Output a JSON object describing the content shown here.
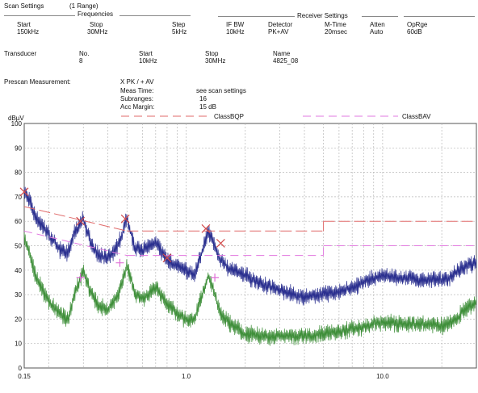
{
  "header": {
    "scan_settings_label": "Scan Settings",
    "range_count": "(1  Range)",
    "frequencies_label": "Frequencies",
    "receiver_settings_label": "Receiver Settings",
    "cols": {
      "start": {
        "label": "Start",
        "value": "150kHz"
      },
      "stop": {
        "label": "Stop",
        "value": "30MHz"
      },
      "step": {
        "label": "Step",
        "value": "5kHz"
      },
      "if_bw": {
        "label": "IF BW",
        "value": "10kHz"
      },
      "detector": {
        "label": "Detector",
        "value": "PK+AV"
      },
      "m_time": {
        "label": "M-Time",
        "value": "20msec"
      },
      "atten": {
        "label": "Atten",
        "value": "Auto"
      },
      "oprge": {
        "label": "OpRge",
        "value": "60dB"
      }
    }
  },
  "transducer": {
    "label": "Transducer",
    "no": {
      "label": "No.",
      "value": "8"
    },
    "start": {
      "label": "Start",
      "value": "10kHz"
    },
    "stop": {
      "label": "Stop",
      "value": "30MHz"
    },
    "name": {
      "label": "Name",
      "value": "4825_08"
    }
  },
  "prescan": {
    "label": "Prescan Measurement:",
    "detector": "X PK / + AV",
    "meas_time": {
      "label": "Meas Time:",
      "value": "see scan settings"
    },
    "subranges": {
      "label": "Subranges:",
      "value": "16"
    },
    "acc_margin": {
      "label": "Acc Margin:",
      "value": "15 dB"
    }
  },
  "chart_data": {
    "type": "line",
    "ylabel": "dBµV",
    "x_scale": "log",
    "xlim": [
      0.15,
      30
    ],
    "ylim": [
      0,
      100
    ],
    "x_ticks": [
      0.15,
      1.0,
      10.0
    ],
    "x_tick_labels": [
      "0.15",
      "1.0",
      "10.0"
    ],
    "y_ticks": [
      0,
      10,
      20,
      30,
      40,
      50,
      60,
      70,
      80,
      90,
      100
    ],
    "y_tick_labels": [
      "0",
      "10",
      "20",
      "30",
      "40",
      "50",
      "60",
      "70",
      "80",
      "90",
      "100"
    ],
    "grid": true,
    "legend": [
      "ClassBQP",
      "ClassBAV"
    ],
    "colors": {
      "peak": "#2a2f8f",
      "average": "#3f8f3a",
      "limit_qp": "#e06a6a",
      "limit_av": "#e27ae0",
      "marker_peak": "#d24b4b",
      "marker_av": "#e070d8"
    },
    "limit_lines": [
      {
        "name": "ClassBQP",
        "segments": [
          {
            "x": [
              0.15,
              0.5
            ],
            "y": [
              66,
              56
            ]
          },
          {
            "x": [
              0.5,
              5
            ],
            "y": [
              56,
              56
            ]
          },
          {
            "x": [
              5,
              30
            ],
            "y": [
              60,
              60
            ]
          }
        ]
      },
      {
        "name": "ClassBAV",
        "segments": [
          {
            "x": [
              0.15,
              0.5
            ],
            "y": [
              56,
              46
            ]
          },
          {
            "x": [
              0.5,
              5
            ],
            "y": [
              46,
              46
            ]
          },
          {
            "x": [
              5,
              30
            ],
            "y": [
              50,
              50
            ]
          }
        ]
      }
    ],
    "series": [
      {
        "key": "peak",
        "envelope": [
          [
            0.15,
            72
          ],
          [
            0.16,
            68
          ],
          [
            0.17,
            62
          ],
          [
            0.19,
            57
          ],
          [
            0.21,
            52
          ],
          [
            0.23,
            48
          ],
          [
            0.25,
            47
          ],
          [
            0.27,
            55
          ],
          [
            0.3,
            61
          ],
          [
            0.33,
            50
          ],
          [
            0.36,
            46
          ],
          [
            0.4,
            45
          ],
          [
            0.45,
            50
          ],
          [
            0.5,
            61
          ],
          [
            0.55,
            49
          ],
          [
            0.6,
            48
          ],
          [
            0.7,
            52
          ],
          [
            0.8,
            44
          ],
          [
            0.9,
            42
          ],
          [
            1.0,
            40
          ],
          [
            1.1,
            38
          ],
          [
            1.3,
            56
          ],
          [
            1.5,
            44
          ],
          [
            1.7,
            40
          ],
          [
            2.0,
            38
          ],
          [
            2.5,
            34
          ],
          [
            3.0,
            32
          ],
          [
            3.5,
            30
          ],
          [
            4.0,
            29
          ],
          [
            5.0,
            30
          ],
          [
            6.0,
            31
          ],
          [
            7.0,
            33
          ],
          [
            8.0,
            35
          ],
          [
            10.0,
            38
          ],
          [
            12.0,
            37
          ],
          [
            15.0,
            36
          ],
          [
            18.0,
            36
          ],
          [
            20.0,
            36
          ],
          [
            23.0,
            38
          ],
          [
            27.0,
            42
          ],
          [
            30.0,
            43
          ]
        ]
      },
      {
        "key": "average",
        "envelope": [
          [
            0.15,
            53
          ],
          [
            0.16,
            47
          ],
          [
            0.17,
            38
          ],
          [
            0.19,
            30
          ],
          [
            0.21,
            25
          ],
          [
            0.23,
            22
          ],
          [
            0.25,
            20
          ],
          [
            0.27,
            30
          ],
          [
            0.3,
            40
          ],
          [
            0.33,
            30
          ],
          [
            0.36,
            25
          ],
          [
            0.4,
            24
          ],
          [
            0.45,
            30
          ],
          [
            0.5,
            42
          ],
          [
            0.55,
            30
          ],
          [
            0.6,
            28
          ],
          [
            0.7,
            33
          ],
          [
            0.8,
            26
          ],
          [
            0.9,
            22
          ],
          [
            1.0,
            20
          ],
          [
            1.1,
            20
          ],
          [
            1.3,
            38
          ],
          [
            1.5,
            22
          ],
          [
            1.7,
            18
          ],
          [
            2.0,
            14
          ],
          [
            2.5,
            13
          ],
          [
            3.0,
            13
          ],
          [
            4.0,
            13
          ],
          [
            5.0,
            14
          ],
          [
            6.0,
            15
          ],
          [
            7.0,
            16
          ],
          [
            8.0,
            17
          ],
          [
            10.0,
            19
          ],
          [
            12.0,
            18
          ],
          [
            15.0,
            18
          ],
          [
            18.0,
            18
          ],
          [
            20.0,
            17
          ],
          [
            23.0,
            19
          ],
          [
            27.0,
            25
          ],
          [
            30.0,
            27
          ]
        ]
      }
    ],
    "peak_markers": [
      [
        0.15,
        72
      ],
      [
        0.29,
        60
      ],
      [
        0.49,
        61
      ],
      [
        0.8,
        45
      ],
      [
        1.26,
        57
      ],
      [
        1.5,
        51
      ]
    ],
    "av_markers": [
      [
        0.29,
        37
      ],
      [
        0.46,
        43
      ],
      [
        1.4,
        37
      ]
    ]
  }
}
